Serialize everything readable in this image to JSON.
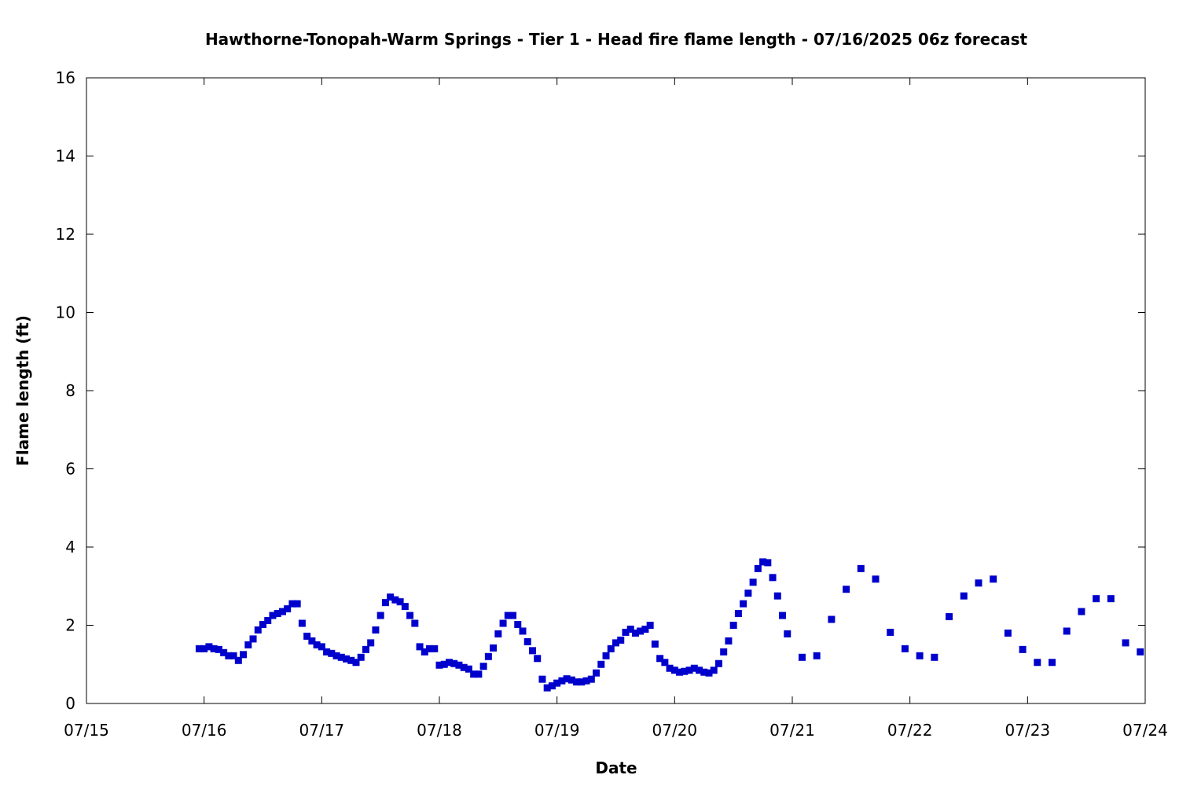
{
  "chart_data": {
    "type": "scatter",
    "title": "Hawthorne-Tonopah-Warm Springs - Tier 1 - Head fire flame length - 07/16/2025 06z forecast",
    "xlabel": "Date",
    "ylabel": "Flame length (ft)",
    "xlim": [
      "2025-07-15",
      "2025-07-24"
    ],
    "ylim": [
      0,
      16
    ],
    "x_ticks": [
      "07/15",
      "07/16",
      "07/17",
      "07/18",
      "07/19",
      "07/20",
      "07/21",
      "07/22",
      "07/23",
      "07/24"
    ],
    "y_ticks": [
      "0",
      "2",
      "4",
      "6",
      "8",
      "10",
      "12",
      "14",
      "16"
    ],
    "grid": false,
    "marker": "square",
    "color": "#0000cc",
    "series": [
      {
        "points": [
          [
            "2025-07-15 23:00",
            1.4
          ],
          [
            "2025-07-16 00:00",
            1.4
          ],
          [
            "2025-07-16 01:00",
            1.45
          ],
          [
            "2025-07-16 02:00",
            1.4
          ],
          [
            "2025-07-16 03:00",
            1.38
          ],
          [
            "2025-07-16 04:00",
            1.3
          ],
          [
            "2025-07-16 05:00",
            1.22
          ],
          [
            "2025-07-16 06:00",
            1.22
          ],
          [
            "2025-07-16 07:00",
            1.1
          ],
          [
            "2025-07-16 08:00",
            1.25
          ],
          [
            "2025-07-16 09:00",
            1.5
          ],
          [
            "2025-07-16 10:00",
            1.65
          ],
          [
            "2025-07-16 11:00",
            1.88
          ],
          [
            "2025-07-16 12:00",
            2.02
          ],
          [
            "2025-07-16 13:00",
            2.12
          ],
          [
            "2025-07-16 14:00",
            2.25
          ],
          [
            "2025-07-16 15:00",
            2.3
          ],
          [
            "2025-07-16 16:00",
            2.35
          ],
          [
            "2025-07-16 17:00",
            2.42
          ],
          [
            "2025-07-16 18:00",
            2.55
          ],
          [
            "2025-07-16 19:00",
            2.55
          ],
          [
            "2025-07-16 20:00",
            2.05
          ],
          [
            "2025-07-16 21:00",
            1.72
          ],
          [
            "2025-07-16 22:00",
            1.6
          ],
          [
            "2025-07-16 23:00",
            1.5
          ],
          [
            "2025-07-17 00:00",
            1.45
          ],
          [
            "2025-07-17 01:00",
            1.32
          ],
          [
            "2025-07-17 02:00",
            1.28
          ],
          [
            "2025-07-17 03:00",
            1.22
          ],
          [
            "2025-07-17 04:00",
            1.18
          ],
          [
            "2025-07-17 05:00",
            1.14
          ],
          [
            "2025-07-17 06:00",
            1.1
          ],
          [
            "2025-07-17 07:00",
            1.05
          ],
          [
            "2025-07-17 08:00",
            1.18
          ],
          [
            "2025-07-17 09:00",
            1.38
          ],
          [
            "2025-07-17 10:00",
            1.55
          ],
          [
            "2025-07-17 11:00",
            1.88
          ],
          [
            "2025-07-17 12:00",
            2.25
          ],
          [
            "2025-07-17 13:00",
            2.58
          ],
          [
            "2025-07-17 14:00",
            2.72
          ],
          [
            "2025-07-17 15:00",
            2.65
          ],
          [
            "2025-07-17 16:00",
            2.6
          ],
          [
            "2025-07-17 17:00",
            2.48
          ],
          [
            "2025-07-17 18:00",
            2.25
          ],
          [
            "2025-07-17 19:00",
            2.05
          ],
          [
            "2025-07-17 20:00",
            1.45
          ],
          [
            "2025-07-17 21:00",
            1.32
          ],
          [
            "2025-07-17 22:00",
            1.4
          ],
          [
            "2025-07-17 23:00",
            1.4
          ],
          [
            "2025-07-18 00:00",
            0.98
          ],
          [
            "2025-07-18 01:00",
            1.0
          ],
          [
            "2025-07-18 02:00",
            1.05
          ],
          [
            "2025-07-18 03:00",
            1.02
          ],
          [
            "2025-07-18 04:00",
            0.98
          ],
          [
            "2025-07-18 05:00",
            0.92
          ],
          [
            "2025-07-18 06:00",
            0.88
          ],
          [
            "2025-07-18 07:00",
            0.75
          ],
          [
            "2025-07-18 08:00",
            0.75
          ],
          [
            "2025-07-18 09:00",
            0.95
          ],
          [
            "2025-07-18 10:00",
            1.2
          ],
          [
            "2025-07-18 11:00",
            1.42
          ],
          [
            "2025-07-18 12:00",
            1.78
          ],
          [
            "2025-07-18 13:00",
            2.05
          ],
          [
            "2025-07-18 14:00",
            2.25
          ],
          [
            "2025-07-18 15:00",
            2.25
          ],
          [
            "2025-07-18 16:00",
            2.02
          ],
          [
            "2025-07-18 17:00",
            1.85
          ],
          [
            "2025-07-18 18:00",
            1.58
          ],
          [
            "2025-07-18 19:00",
            1.35
          ],
          [
            "2025-07-18 20:00",
            1.15
          ],
          [
            "2025-07-18 21:00",
            0.62
          ],
          [
            "2025-07-18 22:00",
            0.4
          ],
          [
            "2025-07-18 23:00",
            0.45
          ],
          [
            "2025-07-19 00:00",
            0.52
          ],
          [
            "2025-07-19 01:00",
            0.58
          ],
          [
            "2025-07-19 02:00",
            0.63
          ],
          [
            "2025-07-19 03:00",
            0.6
          ],
          [
            "2025-07-19 04:00",
            0.55
          ],
          [
            "2025-07-19 05:00",
            0.55
          ],
          [
            "2025-07-19 06:00",
            0.58
          ],
          [
            "2025-07-19 07:00",
            0.62
          ],
          [
            "2025-07-19 08:00",
            0.78
          ],
          [
            "2025-07-19 09:00",
            1.0
          ],
          [
            "2025-07-19 10:00",
            1.22
          ],
          [
            "2025-07-19 11:00",
            1.4
          ],
          [
            "2025-07-19 12:00",
            1.55
          ],
          [
            "2025-07-19 13:00",
            1.62
          ],
          [
            "2025-07-19 14:00",
            1.82
          ],
          [
            "2025-07-19 15:00",
            1.9
          ],
          [
            "2025-07-19 16:00",
            1.8
          ],
          [
            "2025-07-19 17:00",
            1.85
          ],
          [
            "2025-07-19 18:00",
            1.9
          ],
          [
            "2025-07-19 19:00",
            2.0
          ],
          [
            "2025-07-19 20:00",
            1.52
          ],
          [
            "2025-07-19 21:00",
            1.15
          ],
          [
            "2025-07-19 22:00",
            1.05
          ],
          [
            "2025-07-19 23:00",
            0.9
          ],
          [
            "2025-07-20 00:00",
            0.85
          ],
          [
            "2025-07-20 01:00",
            0.8
          ],
          [
            "2025-07-20 02:00",
            0.82
          ],
          [
            "2025-07-20 03:00",
            0.85
          ],
          [
            "2025-07-20 04:00",
            0.9
          ],
          [
            "2025-07-20 05:00",
            0.85
          ],
          [
            "2025-07-20 06:00",
            0.8
          ],
          [
            "2025-07-20 07:00",
            0.78
          ],
          [
            "2025-07-20 08:00",
            0.85
          ],
          [
            "2025-07-20 09:00",
            1.02
          ],
          [
            "2025-07-20 10:00",
            1.32
          ],
          [
            "2025-07-20 11:00",
            1.6
          ],
          [
            "2025-07-20 12:00",
            2.0
          ],
          [
            "2025-07-20 13:00",
            2.3
          ],
          [
            "2025-07-20 14:00",
            2.55
          ],
          [
            "2025-07-20 15:00",
            2.82
          ],
          [
            "2025-07-20 16:00",
            3.1
          ],
          [
            "2025-07-20 17:00",
            3.45
          ],
          [
            "2025-07-20 18:00",
            3.62
          ],
          [
            "2025-07-20 19:00",
            3.6
          ],
          [
            "2025-07-20 20:00",
            3.22
          ],
          [
            "2025-07-20 21:00",
            2.75
          ],
          [
            "2025-07-20 22:00",
            2.25
          ],
          [
            "2025-07-20 23:00",
            1.78
          ],
          [
            "2025-07-21 02:00",
            1.18
          ],
          [
            "2025-07-21 05:00",
            1.22
          ],
          [
            "2025-07-21 08:00",
            2.15
          ],
          [
            "2025-07-21 11:00",
            2.92
          ],
          [
            "2025-07-21 14:00",
            3.45
          ],
          [
            "2025-07-21 17:00",
            3.18
          ],
          [
            "2025-07-21 20:00",
            1.82
          ],
          [
            "2025-07-21 23:00",
            1.4
          ],
          [
            "2025-07-22 02:00",
            1.22
          ],
          [
            "2025-07-22 05:00",
            1.18
          ],
          [
            "2025-07-22 08:00",
            2.22
          ],
          [
            "2025-07-22 11:00",
            2.75
          ],
          [
            "2025-07-22 14:00",
            3.08
          ],
          [
            "2025-07-22 17:00",
            3.18
          ],
          [
            "2025-07-22 20:00",
            1.8
          ],
          [
            "2025-07-22 23:00",
            1.38
          ],
          [
            "2025-07-23 02:00",
            1.05
          ],
          [
            "2025-07-23 05:00",
            1.05
          ],
          [
            "2025-07-23 08:00",
            1.85
          ],
          [
            "2025-07-23 11:00",
            2.35
          ],
          [
            "2025-07-23 14:00",
            2.68
          ],
          [
            "2025-07-23 17:00",
            2.68
          ],
          [
            "2025-07-23 20:00",
            1.55
          ],
          [
            "2025-07-23 23:00",
            1.32
          ]
        ]
      }
    ]
  }
}
